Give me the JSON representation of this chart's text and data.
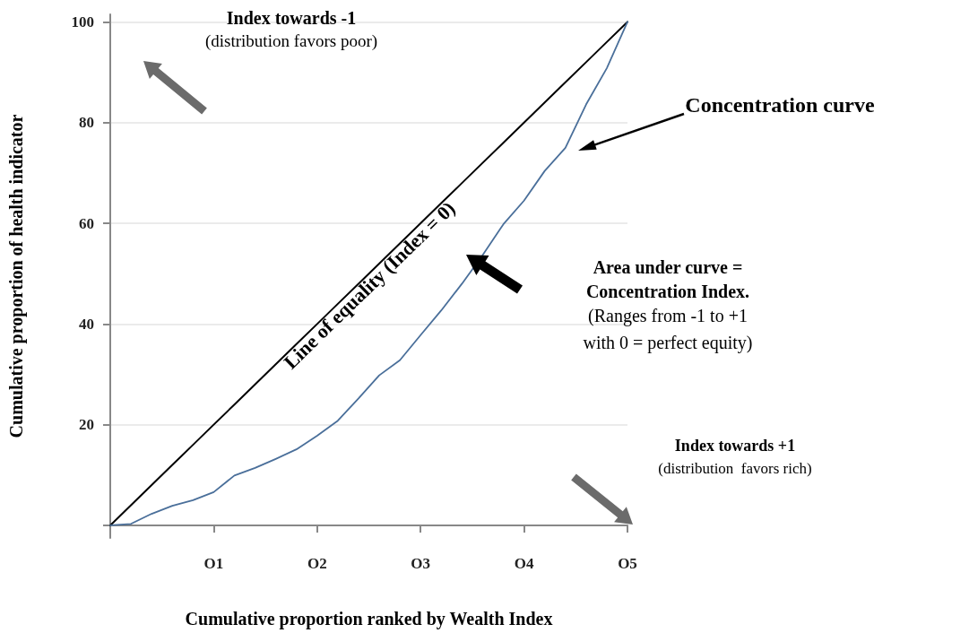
{
  "chart_data": {
    "type": "line",
    "xlabel": "Cumulative proportion ranked by Wealth Index",
    "ylabel": "Cumulative proportion of health indicator",
    "categories": [
      null,
      null,
      null,
      null,
      null,
      "O1",
      null,
      null,
      null,
      null,
      "O2",
      null,
      null,
      null,
      null,
      "O3",
      null,
      null,
      null,
      null,
      "O4",
      null,
      null,
      null,
      null,
      "O5"
    ],
    "ylim": [
      -2.5,
      101.5
    ],
    "yticks": [
      {
        "value": 0,
        "label": null
      },
      20,
      40,
      60,
      80,
      100
    ],
    "grid": "y",
    "marker": "none",
    "line_style": "solid",
    "series": [
      {
        "color": "#000000",
        "values": [
          0,
          4,
          8,
          12,
          16,
          20,
          24,
          28,
          32,
          36,
          40,
          44,
          48,
          52,
          56,
          60,
          64,
          68,
          72,
          76,
          80,
          84,
          88,
          92,
          96,
          100
        ]
      },
      {
        "color": "#4a6f9a",
        "values": [
          0,
          0.3,
          2.3,
          3.9,
          5,
          6.6,
          9.9,
          11.4,
          13.2,
          15.1,
          17.8,
          20.8,
          25.2,
          29.8,
          32.8,
          37.8,
          42.7,
          48,
          53.7,
          59.8,
          64.5,
          70.4,
          75,
          83.6,
          90.8,
          100
        ]
      }
    ],
    "annotations": [
      "Index towards -1",
      "(distribution favors poor)",
      "Concentration curve",
      "Line of equality (Index = 0)",
      "Area under curve =",
      "Concentration Index.",
      "(Ranges from -1 to +1",
      "with 0 = perfect equity)",
      "Index towards +1",
      "(distribution  favors rich)"
    ]
  }
}
